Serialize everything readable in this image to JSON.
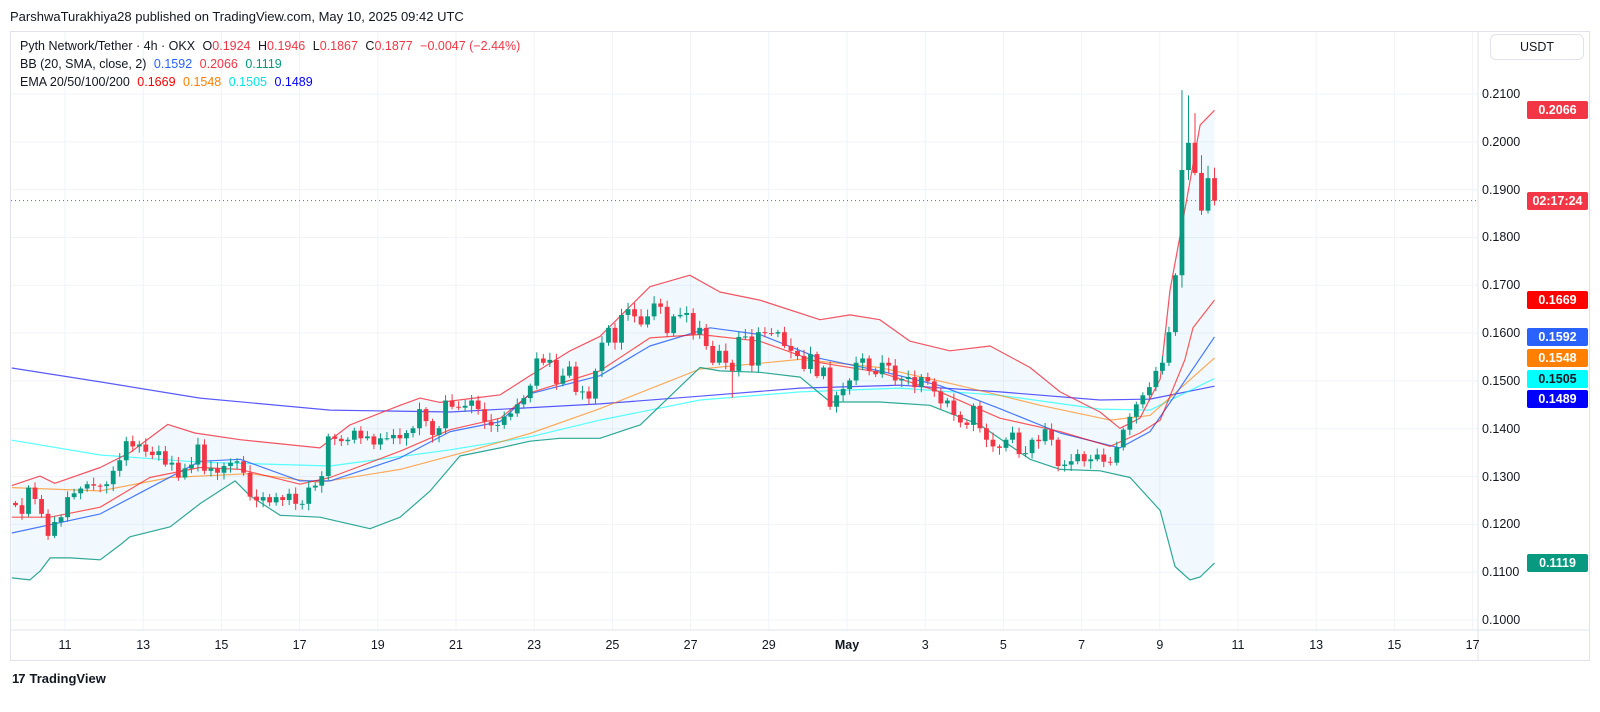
{
  "publish_line": "ParshwaTurakhiya28 published on TradingView.com, May 10, 2025 09:42 UTC",
  "legend": {
    "symbol": "Pyth Network/Tether · 4h · OKX",
    "o_label": "O",
    "o": "0.1924",
    "h_label": "H",
    "h": "0.1946",
    "l_label": "L",
    "l": "0.1867",
    "c_label": "C",
    "c": "0.1877",
    "change": "−0.0047 (−2.44%)",
    "bb_label": "BB (20, SMA, close, 2)",
    "bb_basis": "0.1592",
    "bb_upper": "0.2066",
    "bb_lower": "0.1119",
    "ema_label": "EMA 20/50/100/200",
    "ema20": "0.1669",
    "ema50": "0.1548",
    "ema100": "0.1505",
    "ema200": "0.1489"
  },
  "currency": "USDT",
  "countdown": "02:17:24",
  "branding": "TradingView",
  "colors": {
    "up": "#089981",
    "down": "#f23645",
    "bb_basis": "#2962ff",
    "bb_upper": "#f23645",
    "bb_lower": "#089981",
    "ema20": "#ff0000",
    "ema50": "#ff8000",
    "ema100": "#00ffff",
    "ema200": "#0000ff"
  },
  "chart_data": {
    "type": "candlestick",
    "title": "Pyth Network/Tether · 4h · OKX",
    "interval_hours": 4,
    "time_unit": "days since Apr 11, 2025 00:00",
    "last_candle_t": 29.4,
    "ylim": [
      0.095,
      0.2155
    ],
    "xlim": [
      -1.36,
      36.4
    ],
    "grid": true,
    "y_ticks": [
      "0.1000",
      "0.1100",
      "0.1200",
      "0.1300",
      "0.1400",
      "0.1500",
      "0.1600",
      "0.1700",
      "0.1800",
      "0.1900",
      "0.2000",
      "0.2100"
    ],
    "x_ticks": [
      {
        "t": 0,
        "label": "11"
      },
      {
        "t": 2,
        "label": "13"
      },
      {
        "t": 4,
        "label": "15"
      },
      {
        "t": 6,
        "label": "17"
      },
      {
        "t": 8,
        "label": "19"
      },
      {
        "t": 10,
        "label": "21"
      },
      {
        "t": 12,
        "label": "23"
      },
      {
        "t": 14,
        "label": "25"
      },
      {
        "t": 16,
        "label": "27"
      },
      {
        "t": 18,
        "label": "29"
      },
      {
        "t": 20,
        "label": "May"
      },
      {
        "t": 22,
        "label": "3"
      },
      {
        "t": 24,
        "label": "5"
      },
      {
        "t": 26,
        "label": "7"
      },
      {
        "t": 28,
        "label": "9"
      },
      {
        "t": 30,
        "label": "11"
      },
      {
        "t": 32,
        "label": "13"
      },
      {
        "t": 34,
        "label": "15"
      },
      {
        "t": 36,
        "label": "17"
      }
    ],
    "first_open": 0.1245,
    "closes": [
      0.124,
      0.1222,
      0.1277,
      0.1253,
      0.1222,
      0.1176,
      0.1205,
      0.1215,
      0.1257,
      0.1265,
      0.1275,
      0.1284,
      0.1281,
      0.128,
      0.1284,
      0.1312,
      0.1334,
      0.1374,
      0.1363,
      0.1367,
      0.1352,
      0.1345,
      0.1353,
      0.1325,
      0.1329,
      0.1298,
      0.1317,
      0.1325,
      0.1367,
      0.1312,
      0.1317,
      0.1308,
      0.1322,
      0.1329,
      0.1332,
      0.1308,
      0.1258,
      0.125,
      0.1257,
      0.1246,
      0.1257,
      0.1251,
      0.1264,
      0.1243,
      0.1243,
      0.1277,
      0.1281,
      0.1301,
      0.1384,
      0.1379,
      0.1374,
      0.1377,
      0.1396,
      0.138,
      0.1384,
      0.1367,
      0.138,
      0.138,
      0.1387,
      0.138,
      0.1391,
      0.1401,
      0.1441,
      0.1416,
      0.1387,
      0.1401,
      0.1459,
      0.1446,
      0.1444,
      0.1448,
      0.1459,
      0.1441,
      0.1415,
      0.1407,
      0.1408,
      0.1425,
      0.1432,
      0.1451,
      0.1464,
      0.149,
      0.1547,
      0.1538,
      0.1544,
      0.1494,
      0.1511,
      0.153,
      0.1477,
      0.1478,
      0.1463,
      0.1521,
      0.158,
      0.1611,
      0.158,
      0.1638,
      0.165,
      0.1635,
      0.1618,
      0.1635,
      0.1662,
      0.1655,
      0.16,
      0.1635,
      0.1638,
      0.1642,
      0.1597,
      0.1611,
      0.1573,
      0.1538,
      0.1563,
      0.1538,
      0.1521,
      0.1592,
      0.1593,
      0.1532,
      0.1602,
      0.16,
      0.1599,
      0.1602,
      0.1573,
      0.1563,
      0.1552,
      0.1525,
      0.1556,
      0.151,
      0.1528,
      0.1446,
      0.147,
      0.1483,
      0.1501,
      0.1538,
      0.1547,
      0.1521,
      0.1514,
      0.1538,
      0.1532,
      0.1501,
      0.1504,
      0.1508,
      0.1487,
      0.1508,
      0.1499,
      0.1478,
      0.1453,
      0.1459,
      0.1429,
      0.1413,
      0.1408,
      0.1448,
      0.1401,
      0.1377,
      0.1363,
      0.136,
      0.1377,
      0.1392,
      0.1347,
      0.1349,
      0.1377,
      0.1374,
      0.1399,
      0.1377,
      0.1322,
      0.1325,
      0.1332,
      0.1347,
      0.1332,
      0.1336,
      0.1346,
      0.1331,
      0.1329,
      0.1361,
      0.1398,
      0.1425,
      0.1451,
      0.147,
      0.1487,
      0.1521,
      0.1538,
      0.1602,
      0.1721,
      0.1941,
      0.1998,
      0.1935,
      0.1856,
      0.1924,
      0.1877
    ],
    "wick_overrides": [
      {
        "i": 110,
        "l": 0.1465
      },
      {
        "i": 179,
        "h": 0.2108,
        "l": 0.1695
      },
      {
        "i": 180,
        "h": 0.2097,
        "l": 0.192
      },
      {
        "i": 181,
        "h": 0.206,
        "l": 0.193
      },
      {
        "i": 182,
        "h": 0.1972,
        "l": 0.1847
      },
      {
        "i": 183,
        "h": 0.195,
        "l": 0.185
      },
      {
        "i": 184,
        "h": 0.1946,
        "l": 0.1867
      }
    ],
    "series": [
      {
        "name": "EMA 200",
        "key": "ema200",
        "points": [
          [
            -1.36,
            0.1527
          ],
          [
            0.9,
            0.1498
          ],
          [
            3.45,
            0.1464
          ],
          [
            6.78,
            0.1439
          ],
          [
            9.85,
            0.1435
          ],
          [
            13.68,
            0.1452
          ],
          [
            16.24,
            0.1468
          ],
          [
            18.8,
            0.1485
          ],
          [
            21.36,
            0.1491
          ],
          [
            23.91,
            0.1477
          ],
          [
            26.47,
            0.146
          ],
          [
            27.75,
            0.1462
          ],
          [
            29.4,
            0.1489
          ]
        ]
      },
      {
        "name": "EMA 100",
        "key": "ema100",
        "points": [
          [
            -1.36,
            0.1376
          ],
          [
            0.9,
            0.1345
          ],
          [
            3.45,
            0.133
          ],
          [
            6.78,
            0.1322
          ],
          [
            9.85,
            0.1356
          ],
          [
            11.89,
            0.1383
          ],
          [
            13.68,
            0.1418
          ],
          [
            16.24,
            0.146
          ],
          [
            18.8,
            0.1477
          ],
          [
            21.36,
            0.1485
          ],
          [
            23.91,
            0.147
          ],
          [
            26.47,
            0.1441
          ],
          [
            27.75,
            0.1439
          ],
          [
            29.4,
            0.1505
          ]
        ]
      },
      {
        "name": "EMA 50",
        "key": "ema50",
        "points": [
          [
            -1.36,
            0.1277
          ],
          [
            0.9,
            0.127
          ],
          [
            2.69,
            0.1298
          ],
          [
            4.73,
            0.1306
          ],
          [
            6.52,
            0.1288
          ],
          [
            8.57,
            0.1315
          ],
          [
            10.36,
            0.1354
          ],
          [
            11.89,
            0.139
          ],
          [
            13.68,
            0.1442
          ],
          [
            16.24,
            0.1525
          ],
          [
            18.8,
            0.1545
          ],
          [
            20.84,
            0.1528
          ],
          [
            22.89,
            0.149
          ],
          [
            24.94,
            0.1449
          ],
          [
            26.73,
            0.1418
          ],
          [
            27.75,
            0.1428
          ],
          [
            29.4,
            0.1548
          ]
        ]
      },
      {
        "name": "EMA 20",
        "key": "ema20",
        "points": [
          [
            -1.36,
            0.1215
          ],
          [
            -0.38,
            0.1215
          ],
          [
            0.9,
            0.1236
          ],
          [
            2.17,
            0.1298
          ],
          [
            3.45,
            0.1319
          ],
          [
            4.48,
            0.1315
          ],
          [
            6.01,
            0.1284
          ],
          [
            6.78,
            0.1298
          ],
          [
            8.57,
            0.1353
          ],
          [
            9.85,
            0.1398
          ],
          [
            11.13,
            0.1422
          ],
          [
            11.97,
            0.1477
          ],
          [
            13.68,
            0.1521
          ],
          [
            14.96,
            0.159
          ],
          [
            16.24,
            0.1597
          ],
          [
            17.77,
            0.1583
          ],
          [
            19.31,
            0.1538
          ],
          [
            20.84,
            0.1518
          ],
          [
            22.38,
            0.1477
          ],
          [
            23.91,
            0.1422
          ],
          [
            25.45,
            0.1394
          ],
          [
            26.73,
            0.1363
          ],
          [
            27.49,
            0.1391
          ],
          [
            28.01,
            0.1418
          ],
          [
            28.64,
            0.1544
          ],
          [
            28.85,
            0.1611
          ],
          [
            29.4,
            0.1669
          ]
        ]
      },
      {
        "name": "BB basis",
        "key": "bb_basis",
        "points": [
          [
            -1.36,
            0.1182
          ],
          [
            0.9,
            0.1222
          ],
          [
            3.45,
            0.1332
          ],
          [
            4.48,
            0.1336
          ],
          [
            6.01,
            0.1291
          ],
          [
            6.78,
            0.1291
          ],
          [
            8.57,
            0.1339
          ],
          [
            9.85,
            0.1394
          ],
          [
            11.13,
            0.1415
          ],
          [
            11.89,
            0.1473
          ],
          [
            13.68,
            0.1511
          ],
          [
            14.96,
            0.1573
          ],
          [
            16.5,
            0.1611
          ],
          [
            17.77,
            0.1597
          ],
          [
            19.31,
            0.1547
          ],
          [
            20.84,
            0.1521
          ],
          [
            22.38,
            0.149
          ],
          [
            23.91,
            0.1442
          ],
          [
            25.45,
            0.1391
          ],
          [
            26.98,
            0.136
          ],
          [
            27.75,
            0.1394
          ],
          [
            28.39,
            0.147
          ],
          [
            29.4,
            0.1592
          ]
        ]
      },
      {
        "name": "BB upper",
        "key": "bb_upper",
        "points": [
          [
            -1.36,
            0.1281
          ],
          [
            -0.64,
            0.1301
          ],
          [
            -0.26,
            0.1286
          ],
          [
            0.9,
            0.1319
          ],
          [
            1.66,
            0.135
          ],
          [
            2.63,
            0.1409
          ],
          [
            3.32,
            0.1391
          ],
          [
            4.48,
            0.1377
          ],
          [
            6.52,
            0.136
          ],
          [
            7.29,
            0.1408
          ],
          [
            8.57,
            0.1449
          ],
          [
            9.08,
            0.1464
          ],
          [
            9.59,
            0.1455
          ],
          [
            10.36,
            0.1463
          ],
          [
            11.13,
            0.1471
          ],
          [
            11.89,
            0.1511
          ],
          [
            12.92,
            0.1563
          ],
          [
            13.68,
            0.1593
          ],
          [
            14.96,
            0.1697
          ],
          [
            15.98,
            0.1721
          ],
          [
            16.75,
            0.1686
          ],
          [
            17.77,
            0.1669
          ],
          [
            19.31,
            0.1628
          ],
          [
            20.08,
            0.1638
          ],
          [
            20.84,
            0.1628
          ],
          [
            21.61,
            0.1583
          ],
          [
            22.63,
            0.1563
          ],
          [
            23.66,
            0.1573
          ],
          [
            24.68,
            0.1528
          ],
          [
            25.45,
            0.1477
          ],
          [
            26.47,
            0.1435
          ],
          [
            26.98,
            0.1401
          ],
          [
            27.49,
            0.1422
          ],
          [
            28.01,
            0.1504
          ],
          [
            28.26,
            0.169
          ],
          [
            28.64,
            0.1857
          ],
          [
            29.03,
            0.2035
          ],
          [
            29.4,
            0.2066
          ]
        ]
      },
      {
        "name": "BB lower",
        "key": "bb_lower",
        "points": [
          [
            -1.36,
            0.1088
          ],
          [
            -0.9,
            0.1084
          ],
          [
            -0.64,
            0.1102
          ],
          [
            -0.38,
            0.113
          ],
          [
            0.13,
            0.113
          ],
          [
            0.9,
            0.1126
          ],
          [
            1.41,
            0.1157
          ],
          [
            1.66,
            0.1174
          ],
          [
            2.69,
            0.1195
          ],
          [
            3.45,
            0.1243
          ],
          [
            4.35,
            0.1291
          ],
          [
            4.73,
            0.126
          ],
          [
            5.5,
            0.1219
          ],
          [
            6.52,
            0.1215
          ],
          [
            7.8,
            0.1191
          ],
          [
            8.57,
            0.1215
          ],
          [
            9.34,
            0.127
          ],
          [
            10.1,
            0.1343
          ],
          [
            11.13,
            0.136
          ],
          [
            11.89,
            0.1374
          ],
          [
            12.66,
            0.138
          ],
          [
            13.68,
            0.138
          ],
          [
            14.71,
            0.1408
          ],
          [
            16.24,
            0.1528
          ],
          [
            16.75,
            0.1521
          ],
          [
            17.77,
            0.1518
          ],
          [
            18.8,
            0.1508
          ],
          [
            19.57,
            0.1456
          ],
          [
            20.84,
            0.1456
          ],
          [
            22.12,
            0.1449
          ],
          [
            23.4,
            0.1408
          ],
          [
            24.68,
            0.1336
          ],
          [
            25.45,
            0.1315
          ],
          [
            26.47,
            0.1312
          ],
          [
            27.24,
            0.1298
          ],
          [
            28.01,
            0.1229
          ],
          [
            28.39,
            0.1112
          ],
          [
            28.77,
            0.1084
          ],
          [
            29.03,
            0.109
          ],
          [
            29.4,
            0.1119
          ]
        ]
      }
    ],
    "price_labels": [
      {
        "key": "bb_upper",
        "value": 0.2066,
        "text": "0.2066",
        "bg": "#f23645",
        "fg": "#ffffff"
      },
      {
        "key": "countdown",
        "value": 0.1877,
        "text": "02:17:24",
        "bg": "#f23645",
        "fg": "#ffffff"
      },
      {
        "key": "ema20",
        "value": 0.1669,
        "text": "0.1669",
        "bg": "#ff0000",
        "fg": "#ffffff"
      },
      {
        "key": "bb_basis",
        "value": 0.1592,
        "text": "0.1592",
        "bg": "#2962ff",
        "fg": "#ffffff"
      },
      {
        "key": "ema50",
        "value": 0.1548,
        "text": "0.1548",
        "bg": "#ff8000",
        "fg": "#ffffff"
      },
      {
        "key": "ema100",
        "value": 0.1505,
        "text": "0.1505",
        "bg": "#00ffff",
        "fg": "#131722"
      },
      {
        "key": "ema200",
        "value": 0.1489,
        "text": "0.1489",
        "bg": "#0000ff",
        "fg": "#ffffff"
      },
      {
        "key": "bb_lower",
        "value": 0.1119,
        "text": "0.1119",
        "bg": "#089981",
        "fg": "#ffffff"
      }
    ],
    "current_price": 0.1877
  }
}
